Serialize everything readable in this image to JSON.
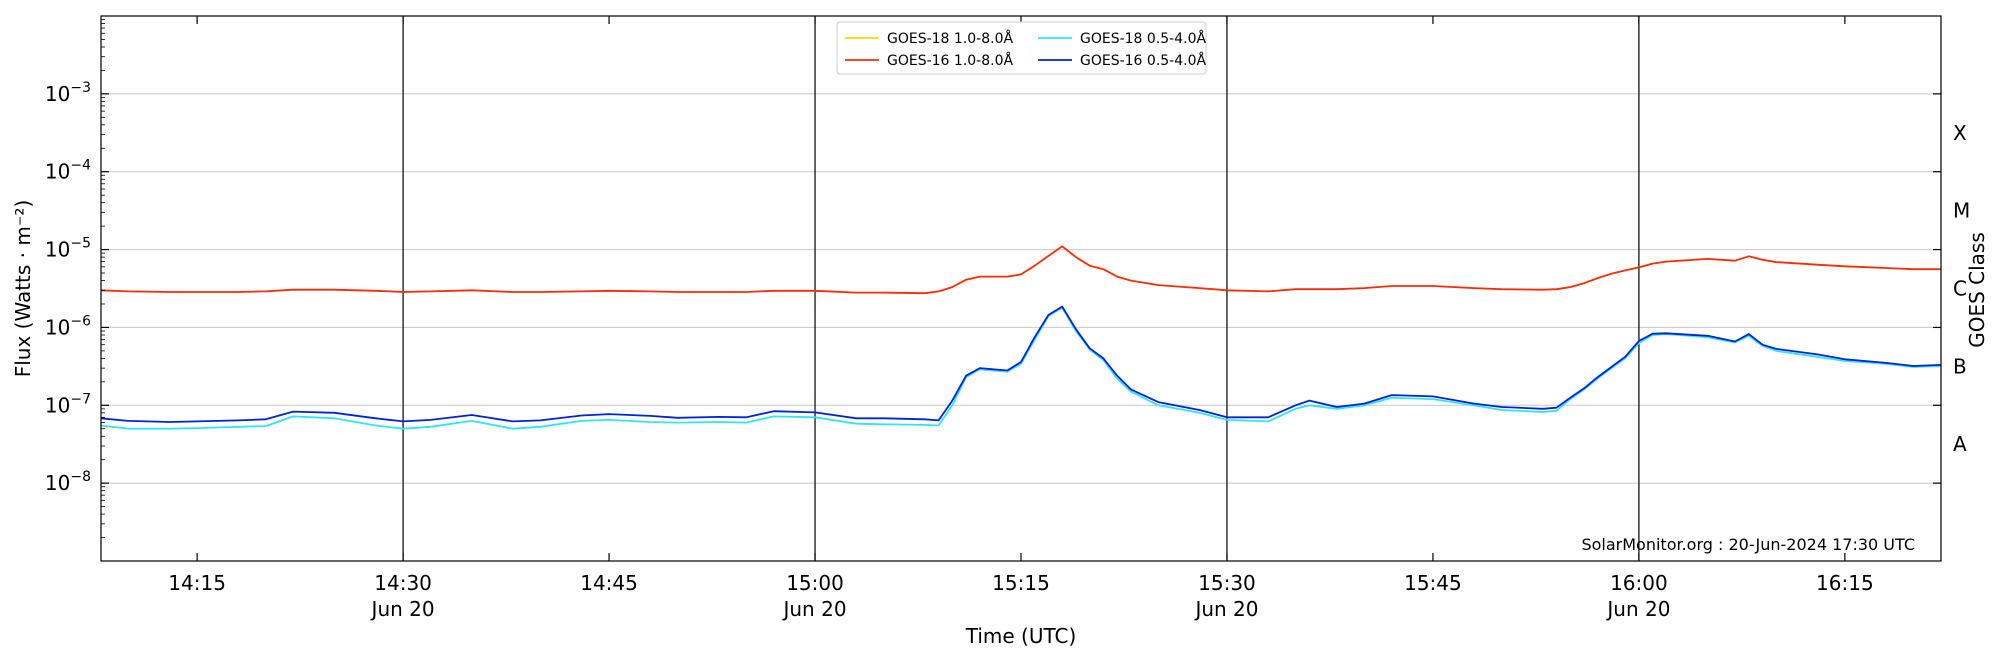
{
  "chart_data": {
    "type": "line",
    "xlabel": "Time (UTC)",
    "ylabel": "Flux (Watts · m⁻²)",
    "ylabel_right": "GOES Class",
    "y_scale": "log",
    "ylim": [
      1e-09,
      0.01
    ],
    "xlim": [
      "14:08",
      "16:22"
    ],
    "grid": "horizontal",
    "y_ticks": [
      {
        "value": 1e-08,
        "base": "10",
        "exp": "−8"
      },
      {
        "value": 1e-07,
        "base": "10",
        "exp": "−7"
      },
      {
        "value": 1e-06,
        "base": "10",
        "exp": "−6"
      },
      {
        "value": 1e-05,
        "base": "10",
        "exp": "−5"
      },
      {
        "value": 0.0001,
        "base": "10",
        "exp": "−4"
      },
      {
        "value": 0.001,
        "base": "10",
        "exp": "−3"
      }
    ],
    "x_ticks": [
      {
        "time": "14:15",
        "label": "14:15",
        "sublabel": ""
      },
      {
        "time": "14:30",
        "label": "14:30",
        "sublabel": "Jun 20"
      },
      {
        "time": "14:45",
        "label": "14:45",
        "sublabel": ""
      },
      {
        "time": "15:00",
        "label": "15:00",
        "sublabel": "Jun 20"
      },
      {
        "time": "15:15",
        "label": "15:15",
        "sublabel": ""
      },
      {
        "time": "15:30",
        "label": "15:30",
        "sublabel": "Jun 20"
      },
      {
        "time": "15:45",
        "label": "15:45",
        "sublabel": ""
      },
      {
        "time": "16:00",
        "label": "16:00",
        "sublabel": "Jun 20"
      },
      {
        "time": "16:15",
        "label": "16:15",
        "sublabel": ""
      }
    ],
    "vertical_lines": [
      "14:30",
      "15:00",
      "15:30",
      "16:00"
    ],
    "goes_classes": [
      {
        "label": "A",
        "value": 3.16e-08
      },
      {
        "label": "B",
        "value": 3.16e-07
      },
      {
        "label": "C",
        "value": 3.16e-06
      },
      {
        "label": "M",
        "value": 3.16e-05
      },
      {
        "label": "X",
        "value": 0.000316
      }
    ],
    "legend": {
      "placement": "top-center",
      "columns": 2
    },
    "series": [
      {
        "name": "GOES-18 1.0-8.0Å",
        "color": "#ffd700",
        "x": [],
        "values": []
      },
      {
        "name": "GOES-16 1.0-8.0Å",
        "color": "#ff2a00",
        "x": [
          "14:08",
          "14:10",
          "14:13",
          "14:15",
          "14:18",
          "14:20",
          "14:22",
          "14:25",
          "14:28",
          "14:30",
          "14:32",
          "14:35",
          "14:38",
          "14:40",
          "14:43",
          "14:45",
          "14:48",
          "14:50",
          "14:53",
          "14:55",
          "14:57",
          "15:00",
          "15:03",
          "15:05",
          "15:08",
          "15:09",
          "15:10",
          "15:11",
          "15:12",
          "15:14",
          "15:15",
          "15:16",
          "15:17",
          "15:18",
          "15:19",
          "15:20",
          "15:21",
          "15:22",
          "15:23",
          "15:25",
          "15:28",
          "15:30",
          "15:33",
          "15:35",
          "15:38",
          "15:40",
          "15:42",
          "15:45",
          "15:48",
          "15:50",
          "15:53",
          "15:54",
          "15:55",
          "15:56",
          "15:57",
          "15:58",
          "15:59",
          "16:00",
          "16:01",
          "16:02",
          "16:05",
          "16:07",
          "16:08",
          "16:09",
          "16:10",
          "16:13",
          "16:15",
          "16:18",
          "16:20",
          "16:22"
        ],
        "values": [
          3e-06,
          2.9e-06,
          2.85e-06,
          2.85e-06,
          2.85e-06,
          2.9e-06,
          3.05e-06,
          3.05e-06,
          2.95e-06,
          2.85e-06,
          2.9e-06,
          3e-06,
          2.85e-06,
          2.85e-06,
          2.9e-06,
          2.95e-06,
          2.9e-06,
          2.85e-06,
          2.85e-06,
          2.85e-06,
          2.95e-06,
          2.95e-06,
          2.8e-06,
          2.8e-06,
          2.75e-06,
          2.9e-06,
          3.3e-06,
          4.1e-06,
          4.5e-06,
          4.5e-06,
          4.8e-06,
          6.2e-06,
          8.3e-06,
          1.1e-05,
          8e-06,
          6.2e-06,
          5.6e-06,
          4.5e-06,
          4e-06,
          3.5e-06,
          3.2e-06,
          3e-06,
          2.9e-06,
          3.1e-06,
          3.1e-06,
          3.2e-06,
          3.4e-06,
          3.4e-06,
          3.2e-06,
          3.1e-06,
          3.05e-06,
          3.1e-06,
          3.3e-06,
          3.7e-06,
          4.3e-06,
          4.9e-06,
          5.4e-06,
          5.9e-06,
          6.6e-06,
          7e-06,
          7.6e-06,
          7.2e-06,
          8.2e-06,
          7.4e-06,
          6.9e-06,
          6.4e-06,
          6.1e-06,
          5.8e-06,
          5.6e-06,
          5.6e-06
        ]
      },
      {
        "name": "GOES-18 0.5-4.0Å",
        "color": "#2ee6f0",
        "x": [
          "14:08",
          "14:10",
          "14:13",
          "14:15",
          "14:18",
          "14:20",
          "14:22",
          "14:25",
          "14:28",
          "14:30",
          "14:32",
          "14:35",
          "14:38",
          "14:40",
          "14:43",
          "14:45",
          "14:48",
          "14:50",
          "14:53",
          "14:55",
          "14:57",
          "15:00",
          "15:03",
          "15:05",
          "15:08",
          "15:09",
          "15:10",
          "15:11",
          "15:12",
          "15:14",
          "15:15",
          "15:16",
          "15:17",
          "15:18",
          "15:19",
          "15:20",
          "15:21",
          "15:22",
          "15:23",
          "15:25",
          "15:28",
          "15:30",
          "15:33",
          "15:35",
          "15:36",
          "15:38",
          "15:40",
          "15:42",
          "15:45",
          "15:48",
          "15:50",
          "15:53",
          "15:54",
          "15:55",
          "15:56",
          "15:57",
          "15:58",
          "15:59",
          "16:00",
          "16:01",
          "16:02",
          "16:05",
          "16:07",
          "16:08",
          "16:09",
          "16:10",
          "16:13",
          "16:15",
          "16:18",
          "16:20",
          "16:22"
        ],
        "values": [
          5.5e-08,
          5e-08,
          5e-08,
          5.1e-08,
          5.3e-08,
          5.4e-08,
          7.2e-08,
          6.8e-08,
          5.5e-08,
          5e-08,
          5.3e-08,
          6.3e-08,
          5e-08,
          5.3e-08,
          6.3e-08,
          6.5e-08,
          6.1e-08,
          6e-08,
          6.1e-08,
          6e-08,
          7.2e-08,
          7e-08,
          5.8e-08,
          5.7e-08,
          5.6e-08,
          5.5e-08,
          1e-07,
          2.3e-07,
          2.9e-07,
          2.7e-07,
          3.4e-07,
          7e-07,
          1.4e-06,
          1.8e-06,
          9e-07,
          5.2e-07,
          3.8e-07,
          2.2e-07,
          1.5e-07,
          1e-07,
          8e-08,
          6.5e-08,
          6.2e-08,
          9e-08,
          1e-07,
          9e-08,
          1e-07,
          1.25e-07,
          1.2e-07,
          1e-07,
          8.7e-08,
          8.2e-08,
          8.5e-08,
          1.2e-07,
          1.6e-07,
          2.2e-07,
          3e-07,
          4e-07,
          6.3e-07,
          8e-07,
          8.2e-07,
          7.5e-07,
          6.4e-07,
          7.8e-07,
          5.8e-07,
          5e-07,
          4.2e-07,
          3.7e-07,
          3.4e-07,
          3.1e-07,
          3.2e-07
        ]
      },
      {
        "name": "GOES-16 0.5-4.0Å",
        "color": "#0022dd",
        "x": [
          "14:08",
          "14:10",
          "14:13",
          "14:15",
          "14:18",
          "14:20",
          "14:22",
          "14:25",
          "14:28",
          "14:30",
          "14:32",
          "14:35",
          "14:38",
          "14:40",
          "14:43",
          "14:45",
          "14:48",
          "14:50",
          "14:53",
          "14:55",
          "14:57",
          "15:00",
          "15:03",
          "15:05",
          "15:08",
          "15:09",
          "15:10",
          "15:11",
          "15:12",
          "15:14",
          "15:15",
          "15:16",
          "15:17",
          "15:18",
          "15:19",
          "15:20",
          "15:21",
          "15:22",
          "15:23",
          "15:25",
          "15:28",
          "15:30",
          "15:33",
          "15:35",
          "15:36",
          "15:38",
          "15:40",
          "15:42",
          "15:45",
          "15:48",
          "15:50",
          "15:53",
          "15:54",
          "15:55",
          "15:56",
          "15:57",
          "15:58",
          "15:59",
          "16:00",
          "16:01",
          "16:02",
          "16:05",
          "16:07",
          "16:08",
          "16:09",
          "16:10",
          "16:13",
          "16:15",
          "16:18",
          "16:20",
          "16:22"
        ],
        "values": [
          6.8e-08,
          6.3e-08,
          6.1e-08,
          6.2e-08,
          6.4e-08,
          6.6e-08,
          8.3e-08,
          8e-08,
          6.8e-08,
          6.2e-08,
          6.5e-08,
          7.5e-08,
          6.2e-08,
          6.4e-08,
          7.4e-08,
          7.7e-08,
          7.3e-08,
          6.9e-08,
          7.1e-08,
          7e-08,
          8.4e-08,
          8.1e-08,
          6.8e-08,
          6.8e-08,
          6.6e-08,
          6.4e-08,
          1.15e-07,
          2.4e-07,
          3e-07,
          2.8e-07,
          3.6e-07,
          7.5e-07,
          1.45e-06,
          1.85e-06,
          9.5e-07,
          5.4e-07,
          4e-07,
          2.4e-07,
          1.6e-07,
          1.1e-07,
          8.7e-08,
          7e-08,
          7e-08,
          1e-07,
          1.15e-07,
          9.5e-08,
          1.05e-07,
          1.35e-07,
          1.3e-07,
          1.05e-07,
          9.5e-08,
          9e-08,
          9.3e-08,
          1.25e-07,
          1.65e-07,
          2.3e-07,
          3.1e-07,
          4.2e-07,
          6.7e-07,
          8.3e-07,
          8.4e-07,
          7.8e-07,
          6.6e-07,
          8.2e-07,
          6e-07,
          5.3e-07,
          4.5e-07,
          3.9e-07,
          3.5e-07,
          3.2e-07,
          3.3e-07
        ]
      }
    ],
    "annotations": [
      {
        "text": "SolarMonitor.org : 20-Jun-2024 17:30 UTC",
        "placement": "bottom-right"
      }
    ]
  }
}
